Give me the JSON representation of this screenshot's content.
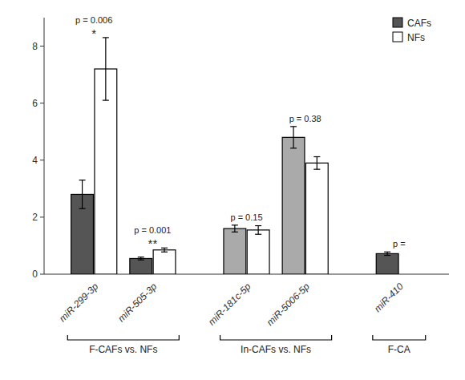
{
  "chart_data": {
    "type": "bar",
    "categories": [
      "miR-299-3p",
      "miR-505-3p",
      "miR-181c-5p",
      "miR-5006-5p",
      "miR-410"
    ],
    "series": [
      {
        "name": "CAFs",
        "color": "#555555",
        "colors": [
          "#555555",
          "#555555",
          "#aaaaaa",
          "#aaaaaa",
          "#555555"
        ],
        "values": [
          2.8,
          0.55,
          1.6,
          4.8,
          0.72
        ],
        "errors": [
          0.5,
          0.05,
          0.12,
          0.38,
          0.06
        ]
      },
      {
        "name": "NFs",
        "color": "#ffffff",
        "values": [
          7.2,
          0.85,
          1.55,
          3.9,
          null
        ],
        "errors": [
          1.1,
          0.07,
          0.15,
          0.22,
          null
        ]
      }
    ],
    "groups": [
      {
        "label": "F-CAFs vs. NFs",
        "categories": [
          "miR-299-3p",
          "miR-505-3p"
        ]
      },
      {
        "label": "In-CAFs vs. NFs",
        "categories": [
          "miR-181c-5p",
          "miR-5006-5p"
        ]
      },
      {
        "label": "F-CA",
        "categories": [
          "miR-410"
        ]
      }
    ],
    "annotations": [
      {
        "category": "miR-299-3p",
        "text": "p = 0.006"
      },
      {
        "category": "miR-299-3p",
        "text": "*"
      },
      {
        "category": "miR-505-3p",
        "text": "p = 0.001"
      },
      {
        "category": "miR-505-3p",
        "text": "**"
      },
      {
        "category": "miR-181c-5p",
        "text": "p = 0.15"
      },
      {
        "category": "miR-5006-5p",
        "text": "p = 0.38"
      },
      {
        "category": "miR-410",
        "text": "p ="
      }
    ],
    "ylim": [
      0,
      9.0
    ],
    "yticks": [
      0,
      2,
      4,
      6,
      8
    ],
    "legend": "upper right",
    "grid": false
  }
}
